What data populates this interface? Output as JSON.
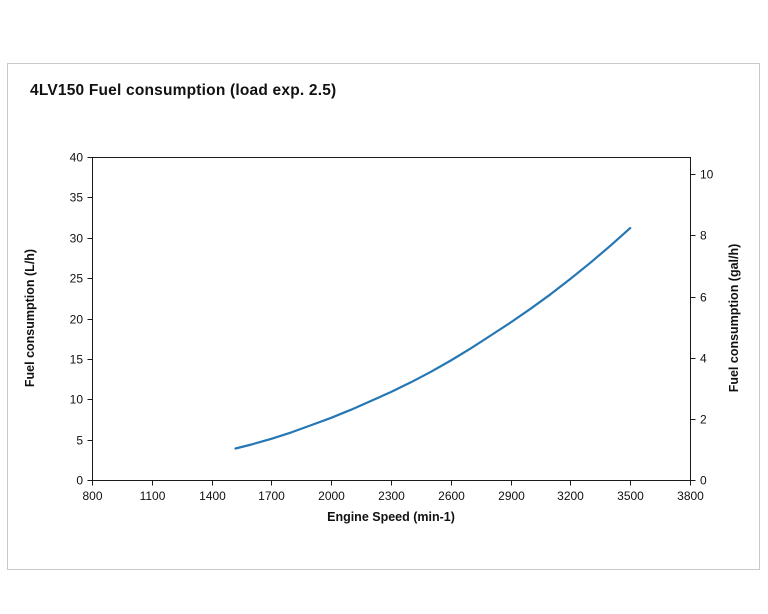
{
  "page": {
    "background_color": "#ffffff",
    "panel_border_color": "#c9c9c9"
  },
  "chart_data": {
    "type": "line",
    "title": "4LV150 Fuel consumption (load exp. 2.5)",
    "xlabel": "Engine Speed (min-1)",
    "ylabel_left": "Fuel consumption (L/h)",
    "ylabel_right": "Fuel consumption (gal/h)",
    "xlim": [
      800,
      3800
    ],
    "x_ticks": [
      800,
      1100,
      1400,
      1700,
      2000,
      2300,
      2600,
      2900,
      3200,
      3500,
      3800
    ],
    "ylim_left": [
      0,
      40
    ],
    "y_ticks_left": [
      0,
      5,
      10,
      15,
      20,
      25,
      30,
      35,
      40
    ],
    "ylim_right": [
      0,
      10.567
    ],
    "y_ticks_right": [
      0,
      2,
      4,
      6,
      8,
      10
    ],
    "gal_to_l": 3.78541,
    "grid": false,
    "legend": "none",
    "line_color": "#2577b5",
    "axis_color": "#1a1a1a",
    "series": [
      {
        "name": "Fuel consumption",
        "x": [
          1520,
          1600,
          1700,
          1800,
          1900,
          2000,
          2100,
          2200,
          2300,
          2400,
          2500,
          2600,
          2700,
          2800,
          2900,
          3000,
          3100,
          3200,
          3300,
          3400,
          3500
        ],
        "y": [
          3.9,
          4.4,
          5.1,
          5.9,
          6.8,
          7.7,
          8.7,
          9.8,
          10.9,
          12.1,
          13.4,
          14.8,
          16.3,
          17.9,
          19.5,
          21.2,
          23.0,
          24.9,
          26.9,
          29.0,
          31.2
        ]
      }
    ]
  }
}
